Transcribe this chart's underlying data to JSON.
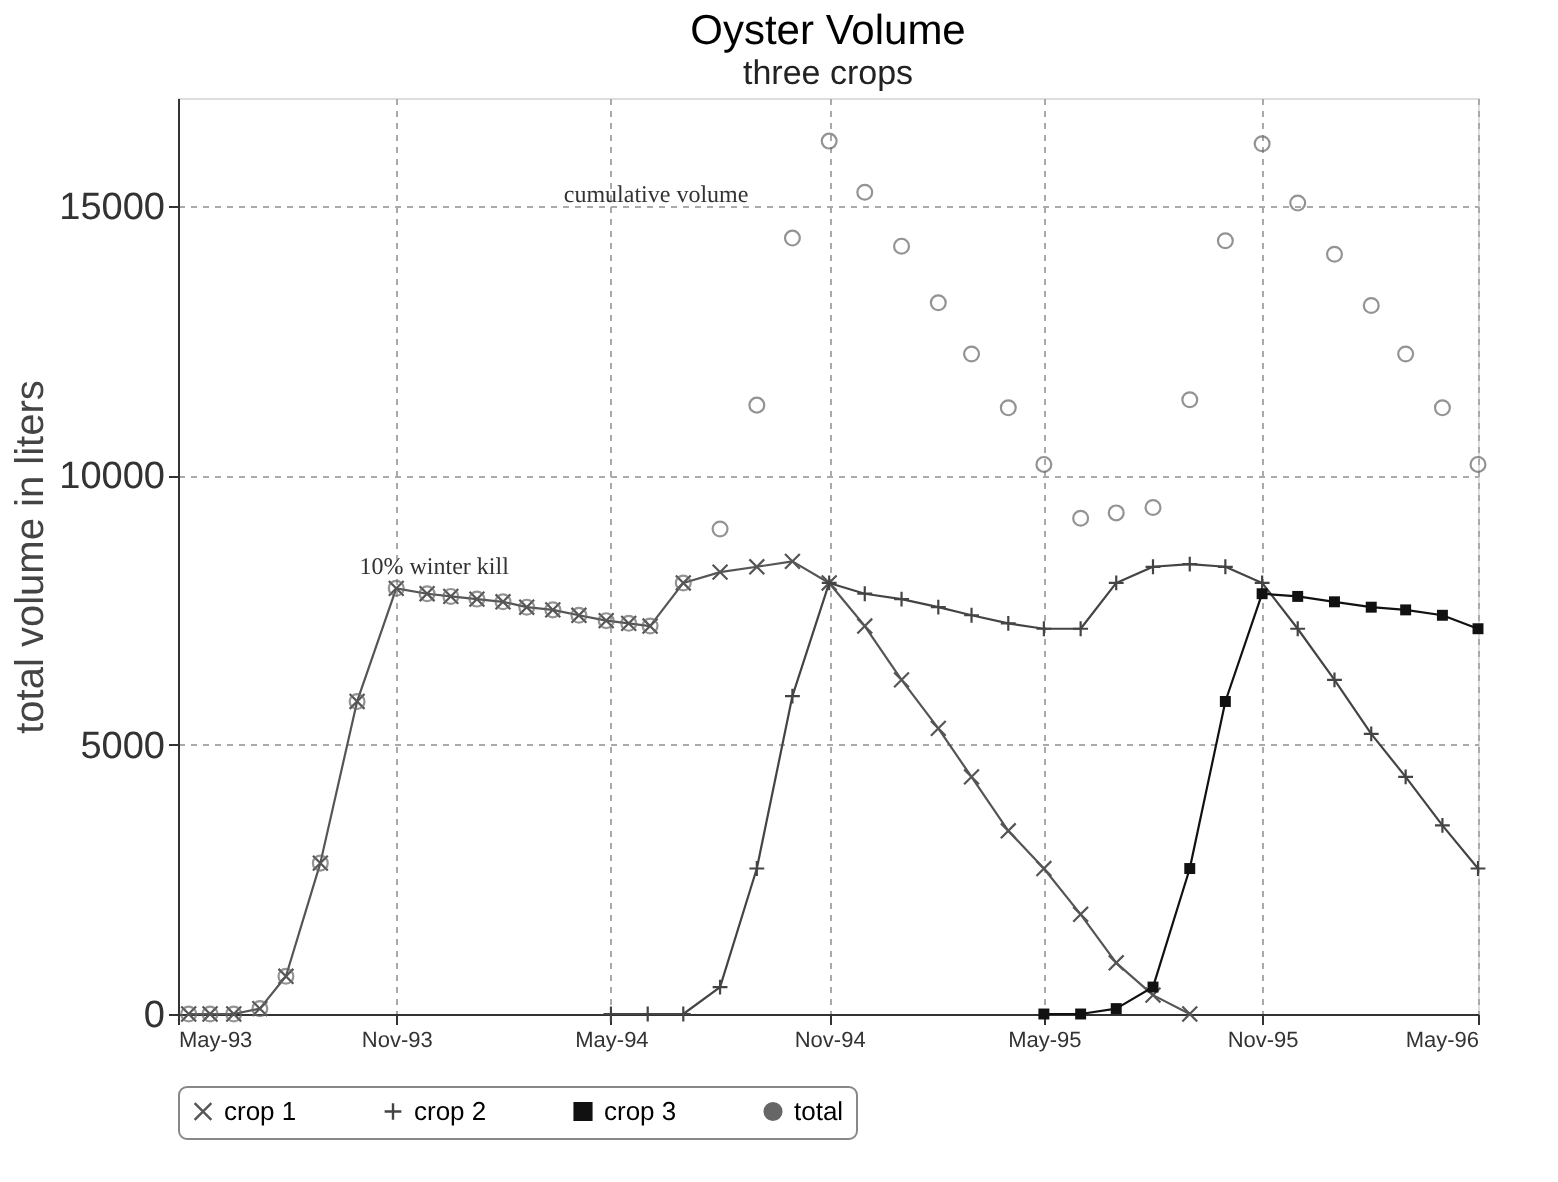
{
  "chart_data": {
    "type": "line",
    "title": "Oyster Volume",
    "subtitle": "three crops",
    "ylabel": "total volume in liters",
    "xlim": [
      "1993-05-01",
      "1996-05-01"
    ],
    "xticks": [
      {
        "value": "1993-05-01",
        "label": "May-93"
      },
      {
        "value": "1993-11-01",
        "label": "Nov-93"
      },
      {
        "value": "1994-05-01",
        "label": "May-94"
      },
      {
        "value": "1994-11-01",
        "label": "Nov-94"
      },
      {
        "value": "1995-05-01",
        "label": "May-95"
      },
      {
        "value": "1995-11-01",
        "label": "Nov-95"
      },
      {
        "value": "1996-05-01",
        "label": "May-96"
      }
    ],
    "ylim": [
      0,
      17000
    ],
    "yticks": [
      0,
      5000,
      10000,
      15000
    ],
    "grid": true,
    "legend": "bottom",
    "annotations": [
      {
        "text": "cumulative volume",
        "x": "1994-10-01",
        "y": 14400
      },
      {
        "text": "10% winter kill",
        "x": "1994-03-13",
        "y": 7500
      }
    ],
    "series": [
      {
        "name": "crop 1",
        "type": "line",
        "marker": "cross",
        "color": "#555555",
        "x": [
          "1993-05-10",
          "1993-05-28",
          "1993-06-17",
          "1993-07-09",
          "1993-07-31",
          "1993-08-29",
          "1993-09-29",
          "1993-11-01",
          "1993-11-27",
          "1993-12-17",
          "1994-01-08",
          "1994-01-30",
          "1994-02-19",
          "1994-03-13",
          "1994-04-04",
          "1994-04-27",
          "1994-05-16",
          "1994-06-03",
          "1994-07-01",
          "1994-08-01",
          "1994-09-01",
          "1994-10-01",
          "1994-11-01",
          "1994-12-01",
          "1995-01-01",
          "1995-02-01",
          "1995-03-01",
          "1995-04-01",
          "1995-05-01",
          "1995-06-01",
          "1995-07-01",
          "1995-08-01",
          "1995-09-01"
        ],
        "values": [
          0,
          0,
          0,
          100,
          700,
          2800,
          5800,
          7900,
          7800,
          7750,
          7700,
          7650,
          7550,
          7500,
          7400,
          7300,
          7250,
          7200,
          8000,
          8200,
          8300,
          8400,
          8000,
          7200,
          6200,
          5300,
          4400,
          3400,
          2700,
          1850,
          950,
          350,
          0
        ]
      },
      {
        "name": "crop 2",
        "type": "line",
        "marker": "plus",
        "color": "#444444",
        "x": [
          "1994-05-01",
          "1994-06-01",
          "1994-07-01",
          "1994-08-01",
          "1994-09-01",
          "1994-10-01",
          "1994-11-01",
          "1994-12-01",
          "1995-01-01",
          "1995-02-01",
          "1995-03-01",
          "1995-04-01",
          "1995-05-01",
          "1995-06-01",
          "1995-07-01",
          "1995-08-01",
          "1995-09-01",
          "1995-10-01",
          "1995-11-01",
          "1995-12-01",
          "1996-01-01",
          "1996-02-01",
          "1996-03-01",
          "1996-04-01",
          "1996-05-01"
        ],
        "values": [
          0,
          0,
          0,
          500,
          2700,
          5900,
          8000,
          7800,
          7700,
          7550,
          7400,
          7250,
          7150,
          7150,
          8000,
          8300,
          8350,
          8300,
          8000,
          7150,
          6200,
          5200,
          4400,
          3500,
          2700
        ]
      },
      {
        "name": "crop 3",
        "type": "line",
        "marker": "square",
        "color": "#111111",
        "x": [
          "1995-05-01",
          "1995-06-01",
          "1995-07-01",
          "1995-08-01",
          "1995-09-01",
          "1995-10-01",
          "1995-11-01",
          "1995-12-01",
          "1996-01-01",
          "1996-02-01",
          "1996-03-01",
          "1996-04-01",
          "1996-05-01"
        ],
        "values": [
          0,
          0,
          100,
          500,
          2700,
          5800,
          7800,
          7750,
          7650,
          7550,
          7500,
          7400,
          7150
        ]
      },
      {
        "name": "total",
        "type": "scatter",
        "marker": "circle",
        "color": "#666666",
        "x": [
          "1993-05-10",
          "1993-05-28",
          "1993-06-17",
          "1993-07-09",
          "1993-07-31",
          "1993-08-29",
          "1993-09-29",
          "1993-11-01",
          "1993-11-27",
          "1993-12-17",
          "1994-01-08",
          "1994-01-30",
          "1994-02-19",
          "1994-03-13",
          "1994-04-04",
          "1994-04-27",
          "1994-05-16",
          "1994-06-03",
          "1994-07-01",
          "1994-08-01",
          "1994-09-01",
          "1994-10-01",
          "1994-11-01",
          "1994-12-01",
          "1995-01-01",
          "1995-02-01",
          "1995-03-01",
          "1995-04-01",
          "1995-05-01",
          "1995-06-01",
          "1995-07-01",
          "1995-08-01",
          "1995-09-01",
          "1995-10-01",
          "1995-11-01",
          "1995-12-01",
          "1996-01-01",
          "1996-02-01",
          "1996-03-01",
          "1996-04-01",
          "1996-05-01"
        ],
        "values": [
          0,
          0,
          0,
          100,
          700,
          2800,
          5800,
          7900,
          7800,
          7750,
          7700,
          7650,
          7550,
          7500,
          7400,
          7300,
          7250,
          7200,
          8000,
          9000,
          11300,
          14400,
          16200,
          15250,
          14250,
          13200,
          12250,
          11250,
          10200,
          9200,
          9300,
          9400,
          11400,
          14350,
          16150,
          15050,
          14100,
          13150,
          12250,
          11250,
          10200
        ]
      }
    ]
  }
}
